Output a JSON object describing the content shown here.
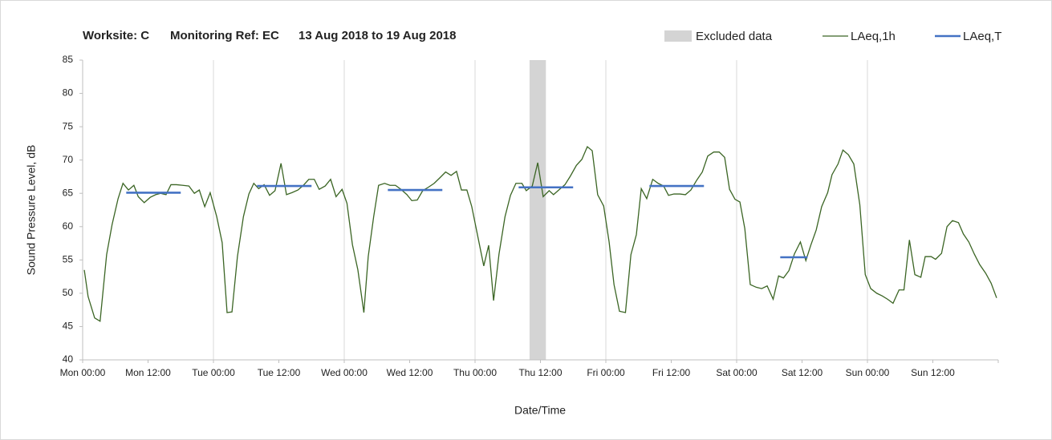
{
  "chart_data": {
    "type": "line",
    "title": [
      "Worksite: C",
      "Monitoring Ref: EC",
      "13 Aug 2018 to 19 Aug 2018"
    ],
    "x_label": "Date/Time",
    "y_label": "Sound Pressure Level, dB",
    "xlim": [
      0,
      168
    ],
    "xticks": [
      {
        "value": 0,
        "label": "Mon 00:00"
      },
      {
        "value": 12,
        "label": "Mon 12:00"
      },
      {
        "value": 24,
        "label": "Tue 00:00"
      },
      {
        "value": 36,
        "label": "Tue 12:00"
      },
      {
        "value": 48,
        "label": "Wed 00:00"
      },
      {
        "value": 60,
        "label": "Wed 12:00"
      },
      {
        "value": 72,
        "label": "Thu 00:00"
      },
      {
        "value": 84,
        "label": "Thu 12:00"
      },
      {
        "value": 96,
        "label": "Fri 00:00"
      },
      {
        "value": 108,
        "label": "Fri 12:00"
      },
      {
        "value": 120,
        "label": "Sat 00:00"
      },
      {
        "value": 132,
        "label": "Sat 12:00"
      },
      {
        "value": 144,
        "label": "Sun 00:00"
      },
      {
        "value": 156,
        "label": "Sun 12:00"
      }
    ],
    "ylim": [
      40,
      85
    ],
    "yticks": [
      40,
      45,
      50,
      55,
      60,
      65,
      70,
      75,
      80,
      85
    ],
    "excluded": {
      "name": "Excluded data",
      "color": "#d4d4d4",
      "x": [
        82,
        85
      ]
    },
    "series": [
      {
        "name": "LAeq,1h",
        "color": "#3b6524",
        "x": [
          0.3,
          1,
          2.2,
          3.2,
          4.4,
          5.4,
          6.5,
          7.4,
          8.4,
          9.4,
          10.2,
          11.3,
          12.4,
          13.4,
          14.3,
          15.3,
          16.2,
          17.2,
          18.4,
          19.5,
          20.5,
          21.4,
          22.4,
          23.4,
          24.6,
          25.6,
          26.5,
          27.4,
          28.4,
          29.5,
          30.5,
          31.4,
          32.3,
          33.3,
          34.3,
          35.3,
          36.4,
          37.4,
          38.4,
          39.5,
          40.5,
          41.5,
          42.5,
          43.4,
          44.5,
          45.5,
          46.5,
          47.6,
          48.5,
          49.5,
          50.5,
          51.6,
          52.4,
          53.4,
          54.3,
          55.4,
          56.4,
          57.4,
          58.4,
          59.5,
          60.4,
          61.4,
          62.4,
          63.4,
          64.5,
          65.5,
          66.6,
          67.6,
          68.6,
          69.5,
          70.5,
          71.4,
          73.6,
          74.5,
          75.4,
          76.4,
          77.5,
          78.5,
          79.5,
          80.6,
          81.4,
          82.5,
          83.5,
          84.5,
          85.6,
          86.4,
          87.5,
          88.5,
          89.5,
          90.6,
          91.6,
          92.6,
          93.5,
          94.5,
          95.6,
          96.6,
          97.5,
          98.5,
          99.6,
          100.6,
          101.6,
          102.5,
          103.5,
          104.6,
          105.6,
          106.6,
          107.5,
          108.5,
          109.6,
          110.6,
          111.6,
          112.7,
          113.7,
          114.7,
          115.8,
          116.8,
          117.8,
          118.7,
          119.7,
          120.6,
          121.5,
          122.5,
          123.6,
          124.6,
          125.6,
          126.7,
          127.7,
          128.6,
          129.6,
          130.6,
          131.7,
          132.7,
          133.6,
          134.6,
          135.6,
          136.7,
          137.5,
          138.6,
          139.5,
          140.5,
          141.5,
          142.6,
          143.6,
          144.6,
          145.7,
          146.7,
          147.7,
          148.7,
          149.8,
          150.7,
          151.7,
          152.7,
          153.8,
          154.6,
          155.7,
          156.5,
          157.6,
          158.6,
          159.6,
          160.7,
          161.6,
          162.6,
          163.6,
          164.6,
          165.7,
          166.7,
          167.7
        ],
        "values": [
          53.5,
          49.5,
          46.3,
          45.8,
          55.8,
          60.3,
          64.2,
          66.5,
          65.5,
          66.2,
          64.5,
          63.6,
          64.4,
          64.8,
          65,
          64.8,
          66.3,
          66.3,
          66.2,
          66.1,
          65,
          65.5,
          63,
          65.1,
          61.5,
          57.6,
          47.1,
          47.2,
          55.5,
          61.5,
          64.9,
          66.5,
          65.7,
          66.3,
          64.7,
          65.4,
          69.5,
          64.8,
          65.1,
          65.5,
          66.2,
          67.1,
          67.1,
          65.6,
          66.1,
          67.1,
          64.5,
          65.6,
          63.5,
          57.3,
          53.5,
          47.1,
          55.5,
          61.5,
          66.2,
          66.5,
          66.2,
          66.2,
          65.6,
          64.8,
          63.9,
          64,
          65.4,
          65.9,
          66.5,
          67.3,
          68.2,
          67.7,
          68.3,
          65.5,
          65.5,
          63,
          54.1,
          57.2,
          48.9,
          55.9,
          61.5,
          64.7,
          66.5,
          66.5,
          65.4,
          66.1,
          69.6,
          64.5,
          65.4,
          64.8,
          65.6,
          66.3,
          67.6,
          69.2,
          70.1,
          72,
          71.4,
          64.8,
          63.1,
          57.7,
          51.3,
          47.3,
          47.1,
          55.8,
          58.8,
          65.7,
          64.2,
          67.1,
          66.5,
          66.1,
          64.7,
          64.9,
          64.9,
          64.8,
          65.5,
          67,
          68.2,
          70.6,
          71.2,
          71.2,
          70.4,
          65.6,
          64.1,
          63.7,
          59.7,
          51.3,
          50.9,
          50.7,
          51.1,
          49.1,
          52.6,
          52.3,
          53.4,
          55.9,
          57.7,
          54.9,
          57.2,
          59.5,
          63,
          65.1,
          67.8,
          69.4,
          71.5,
          70.8,
          69.4,
          63.3,
          52.8,
          50.7,
          50,
          49.6,
          49.1,
          48.5,
          50.5,
          50.5,
          58,
          52.8,
          52.4,
          55.5,
          55.5,
          55.1,
          56,
          60,
          60.9,
          60.6,
          58.9,
          57.7,
          55.9,
          54.3,
          53,
          51.5,
          49.3
        ]
      },
      {
        "name": "LAeq,T",
        "color": "#4472c4",
        "x": [
          8,
          18,
          null,
          32,
          42,
          null,
          56,
          66,
          null,
          80,
          90,
          null,
          104,
          114,
          null,
          128,
          133
        ],
        "values": [
          65.1,
          65.1,
          null,
          66.1,
          66.1,
          null,
          65.5,
          65.5,
          null,
          65.9,
          65.9,
          null,
          66.1,
          66.1,
          null,
          55.4,
          55.4
        ]
      }
    ]
  }
}
